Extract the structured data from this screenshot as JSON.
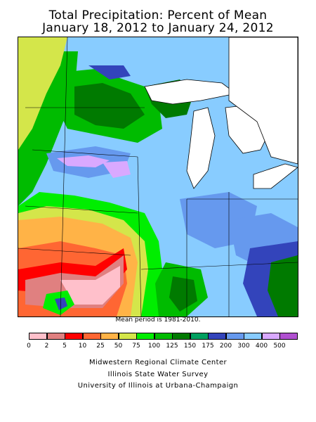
{
  "title_line1": "Total Precipitation: Percent of Mean",
  "title_line2": "January 18, 2012 to January 24, 2012",
  "mean_period_note": "Mean period is 1981-2010.",
  "legend": {
    "bins": [
      {
        "color": "#ffc0cb"
      },
      {
        "color": "#e08080"
      },
      {
        "color": "#ff0000"
      },
      {
        "color": "#ff6633"
      },
      {
        "color": "#ffb347"
      },
      {
        "color": "#d4e64a"
      },
      {
        "color": "#00ee00"
      },
      {
        "color": "#00bb00"
      },
      {
        "color": "#007a00"
      },
      {
        "color": "#00a060"
      },
      {
        "color": "#3344bb"
      },
      {
        "color": "#6699ee"
      },
      {
        "color": "#88ccff"
      },
      {
        "color": "#d9a9ff"
      },
      {
        "color": "#b050d0"
      }
    ],
    "ticks": [
      "0",
      "2",
      "5",
      "10",
      "25",
      "50",
      "75",
      "100",
      "125",
      "150",
      "175",
      "200",
      "300",
      "400",
      "500"
    ]
  },
  "credits": {
    "line1": "Midwestern Regional Climate Center",
    "line2": "Illinois State Water Survey",
    "line3": "University of Illinois at Urbana-Champaign"
  }
}
